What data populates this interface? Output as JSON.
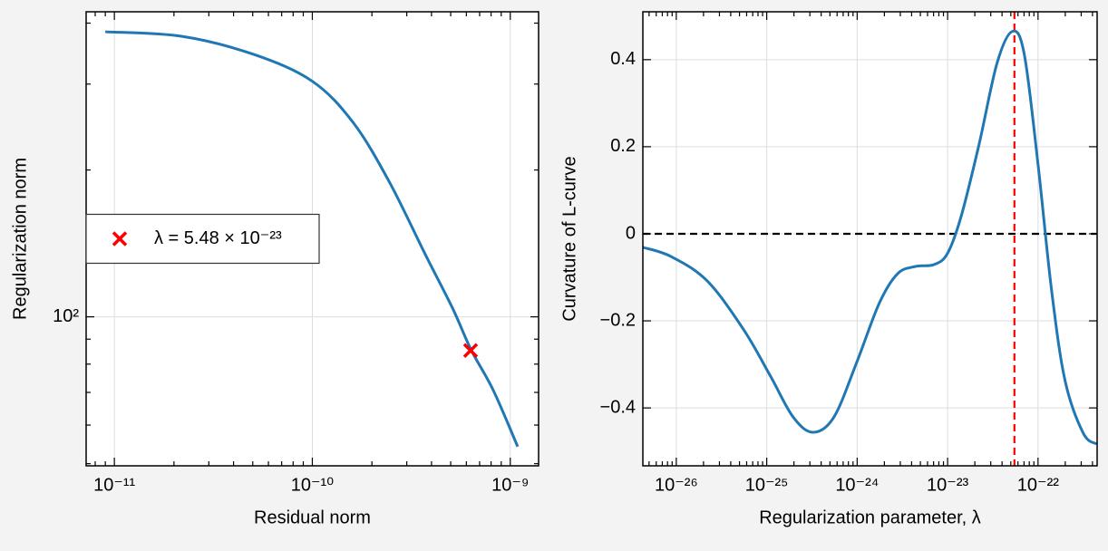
{
  "chart_data": [
    {
      "type": "line",
      "xlabel": "Residual norm",
      "ylabel": "Regularization norm",
      "xscale": "log",
      "yscale": "log",
      "grid": true,
      "legend": "center left",
      "xlim": [
        7.2e-12,
        1.39e-09
      ],
      "ylim": [
        49.5,
        422
      ],
      "xticks": [
        {
          "value": 1e-11,
          "label": "10⁻¹¹"
        },
        {
          "value": 1e-10,
          "label": "10⁻¹⁰"
        },
        {
          "value": 1e-09,
          "label": "10⁻⁹"
        }
      ],
      "yticks": [
        {
          "value": 100,
          "label": "10²"
        }
      ],
      "series": [
        {
          "color": "#1f77b4",
          "x": [
            9e-12,
            2.18e-11,
            5.07e-11,
            1e-10,
            1.61e-10,
            2.45e-10,
            3.73e-10,
            5.12e-10,
            6.33e-10,
            8.22e-10,
            1.09e-09
          ],
          "values": [
            384,
            376,
            345,
            304,
            250,
            189,
            134,
            104,
            85.7,
            70.6,
            54.2
          ]
        },
        {
          "name": "λ = 5.48 × 10⁻²³",
          "color": "#ff0000",
          "marker": "x",
          "x": [
            6.3e-10
          ],
          "values": [
            85.3
          ]
        }
      ]
    },
    {
      "type": "line",
      "xlabel": "Regularization parameter, λ",
      "ylabel": "Curvature of L-curve",
      "xscale": "log",
      "grid": true,
      "xlim": [
        4.27e-27,
        4.5e-22
      ],
      "ylim": [
        -0.533,
        0.51
      ],
      "xticks": [
        {
          "value": 1e-26,
          "label": "10⁻²⁶"
        },
        {
          "value": 1e-25,
          "label": "10⁻²⁵"
        },
        {
          "value": 1e-24,
          "label": "10⁻²⁴"
        },
        {
          "value": 1e-23,
          "label": "10⁻²³"
        },
        {
          "value": 1e-22,
          "label": "10⁻²²"
        }
      ],
      "yticks": [
        {
          "value": -0.4,
          "label": "−0.4"
        },
        {
          "value": -0.2,
          "label": "−0.2"
        },
        0,
        0.2,
        0.4
      ],
      "hlines": [
        {
          "value": 0,
          "color": "#000000"
        }
      ],
      "vlines": [
        {
          "value": 5.48e-23,
          "color": "#ff0000"
        }
      ],
      "series": [
        {
          "color": "#1f77b4",
          "x": [
            4.26e-27,
            8.7e-27,
            2.19e-26,
            5.51e-26,
            1.1e-25,
            1.96e-25,
            3.26e-25,
            5.54e-25,
            9.86e-25,
            1.75e-24,
            2.79e-24,
            4.42e-24,
            7.01e-24,
            9.91e-24,
            1.4e-23,
            2.22e-23,
            3.52e-23,
            5.21e-23,
            7.04e-23,
            9.96e-23,
            1.41e-22,
            1.99e-22,
            3.16e-22,
            4.46e-22
          ],
          "values": [
            -0.031,
            -0.052,
            -0.108,
            -0.219,
            -0.327,
            -0.421,
            -0.456,
            -0.421,
            -0.296,
            -0.16,
            -0.092,
            -0.075,
            -0.071,
            -0.046,
            0.0375,
            0.204,
            0.392,
            0.465,
            0.4125,
            0.1625,
            -0.129,
            -0.3375,
            -0.458,
            -0.483
          ]
        }
      ]
    }
  ]
}
